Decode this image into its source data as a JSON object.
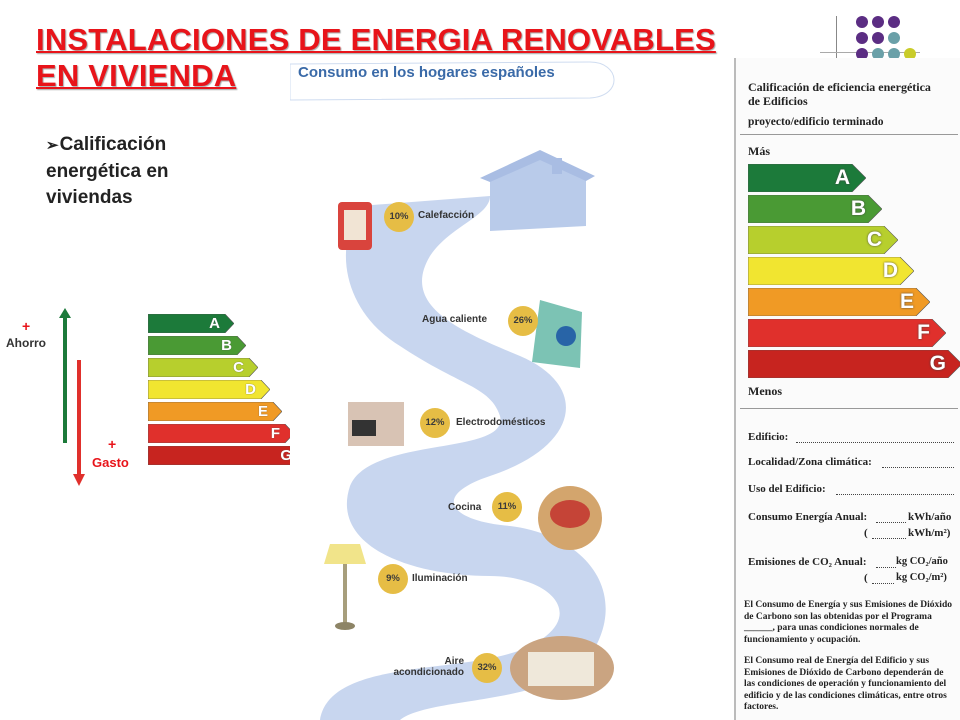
{
  "title": {
    "line1": "INSTALACIONES DE ENERGIA RENOVABLES",
    "line2": "EN VIVIENDA"
  },
  "bullet": {
    "marker": "Ø",
    "text": "Calificación energética en viviendas"
  },
  "colors": {
    "title": "#e8141a",
    "A": "#1c7a3a",
    "B": "#4a9a34",
    "C": "#b7cf2d",
    "D": "#f1e530",
    "E": "#f09a25",
    "F": "#e0302c",
    "G": "#c7241f"
  },
  "left_scale": {
    "ahorro_plus": "+",
    "ahorro_label": "Ahorro",
    "gasto_plus": "+",
    "gasto_label": "Gasto",
    "classes": [
      "A",
      "B",
      "C",
      "D",
      "E",
      "F",
      "G"
    ]
  },
  "infographic": {
    "title": "Consumo en los hogares españoles",
    "items": [
      {
        "label": "Calefacción",
        "percent": "10%"
      },
      {
        "label": "Agua caliente",
        "percent": "26%"
      },
      {
        "label": "Electrodomésticos",
        "percent": "12%"
      },
      {
        "label": "Cocina",
        "percent": "11%"
      },
      {
        "label": "Iluminación",
        "percent": "9%"
      },
      {
        "label": "Aire acondicionado",
        "percent": "32%"
      }
    ]
  },
  "label": {
    "heading1": "Calificación de eficiencia energética",
    "heading2": "de Edificios",
    "subheading": "proyecto/edificio terminado",
    "mas": "Más",
    "menos": "Menos",
    "classes": [
      "A",
      "B",
      "C",
      "D",
      "E",
      "F",
      "G"
    ],
    "fields": {
      "edificio": "Edificio:",
      "localidad": "Localidad/Zona climática:",
      "uso": "Uso del Edificio:",
      "consumo": "Consumo Energía Anual:",
      "consumo_unit1": "kWh/año",
      "consumo_unit2": "kWh/m²)",
      "emisiones": "Emisiones de CO₂ Anual:",
      "emisiones_unit1": "kg CO₂/año",
      "emisiones_unit2": "kg CO₂/m²)"
    },
    "note1": "El Consumo de Energía y sus Emisiones de Dióxido de Carbono son las obtenidas por el Programa ______, para unas condiciones normales de funcionamiento y ocupación.",
    "note2": "El Consumo real de Energía del Edificio y sus Emisiones de Dióxido de Carbono dependerán de las condiciones de operación y funcionamiento del edificio y de las condiciones climáticas, entre otros factores."
  }
}
